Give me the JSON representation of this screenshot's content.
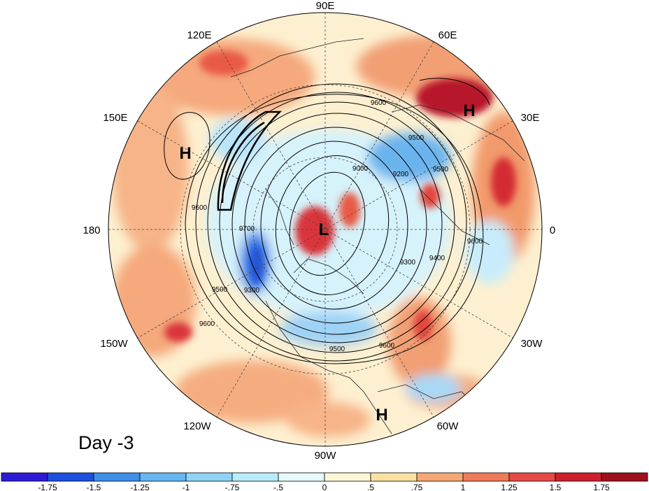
{
  "title": "Day -3",
  "longitude_labels": [
    "90E",
    "60E",
    "120E",
    "30E",
    "150E",
    "180",
    "0",
    "150W",
    "30W",
    "120W",
    "60W",
    "90W"
  ],
  "contour_labels": [
    "9600",
    "9500",
    "9000",
    "9200",
    "9500",
    "9600",
    "9700",
    "9300",
    "9400",
    "9600",
    "9300",
    "9500",
    "9600",
    "9500",
    "9600"
  ],
  "pressure_centers": [
    "H",
    "H",
    "L",
    "H"
  ],
  "colorbar": {
    "labels": [
      "-1.75",
      "-1.5",
      "-1.25",
      "-1",
      "-.75",
      "-.5",
      "0",
      ".5",
      ".75",
      "1",
      "1.25",
      "1.5",
      "1.75"
    ],
    "colors": [
      "#2c1bd6",
      "#1f4fe0",
      "#3d8fe8",
      "#64b5f0",
      "#8fd3f7",
      "#b9ecfb",
      "#e6f9fd",
      "#fdf7d4",
      "#fbe0a2",
      "#f6a874",
      "#f07b58",
      "#e64a44",
      "#cf1f2e",
      "#a0101d"
    ]
  }
}
